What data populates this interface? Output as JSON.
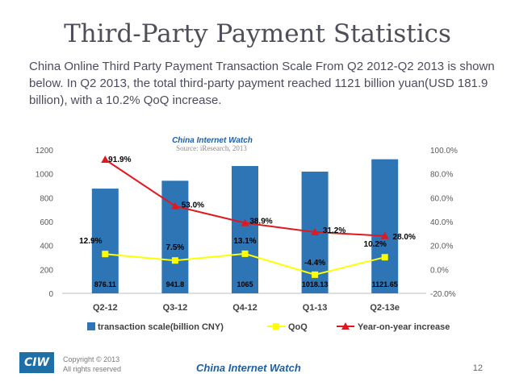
{
  "slide": {
    "title": "Third-Party Payment Statistics",
    "intro": "China Online Third Party Payment Transaction Scale From Q2 2012-Q2 2013 is shown below. In Q2 2013, the total third-party payment reached 1121 billion yuan(USD 181.9 billion), with a 10.2% QoQ increase."
  },
  "footer": {
    "logo": "CIW",
    "copyright": "Copyright © 2013",
    "rights": "All rights reserved",
    "site": "China Internet Watch",
    "page": "12"
  },
  "chart_data": {
    "type": "bar",
    "watermark": "China Internet Watch",
    "source": "Source: iResearch, 2013",
    "categories": [
      "Q2-12",
      "Q3-12",
      "Q4-12",
      "Q1-13",
      "Q2-13e"
    ],
    "ylim": [
      0,
      1200
    ],
    "y_ticks": [
      "0",
      "200",
      "400",
      "600",
      "800",
      "1000",
      "1200"
    ],
    "y2lim": [
      -20,
      100
    ],
    "y2_ticks": [
      "-20.0%",
      "0.0%",
      "20.0%",
      "40.0%",
      "60.0%",
      "80.0%",
      "100.0%"
    ],
    "grid": false,
    "legend_position": "bottom",
    "series": [
      {
        "name": "transaction scale(billion CNY)",
        "kind": "bar",
        "axis": "left",
        "color": "#2e75b6",
        "values": [
          876.11,
          941.8,
          1065,
          1018.13,
          1121.65
        ],
        "labels": [
          "876.11",
          "941.8",
          "1065",
          "1018.13",
          "1121.65"
        ]
      },
      {
        "name": "QoQ",
        "kind": "line",
        "axis": "right",
        "color": "#ffff00",
        "values": [
          12.9,
          7.5,
          13.1,
          -4.4,
          10.2
        ],
        "labels": [
          "12.9%",
          "7.5%",
          "13.1%",
          "-4.4%",
          "10.2%"
        ]
      },
      {
        "name": "Year-on-year increase",
        "kind": "line",
        "axis": "right",
        "color": "#e0191f",
        "values": [
          91.9,
          53.0,
          38.9,
          31.2,
          28.0
        ],
        "labels": [
          "91.9%",
          "53.0%",
          "38.9%",
          "31.2%",
          "28.0%"
        ]
      }
    ]
  }
}
